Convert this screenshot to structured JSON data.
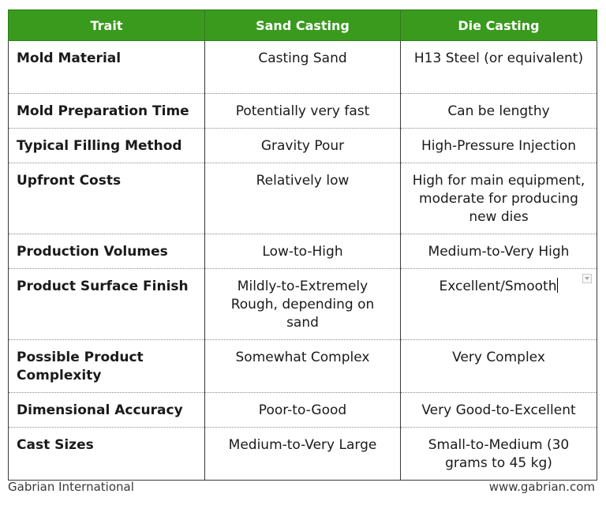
{
  "table": {
    "headers": [
      "Trait",
      "Sand Casting",
      "Die Casting"
    ],
    "rows": [
      {
        "trait": "Mold Material",
        "sand": "Casting Sand",
        "die": "H13 Steel (or equivalent)"
      },
      {
        "trait": "Mold Preparation Time",
        "sand": "Potentially very fast",
        "die": "Can be lengthy"
      },
      {
        "trait": "Typical Filling Method",
        "sand": "Gravity Pour",
        "die": "High-Pressure Injection"
      },
      {
        "trait": "Upfront Costs",
        "sand": "Relatively low",
        "die": "High for main equipment, moderate for producing new dies"
      },
      {
        "trait": "Production Volumes",
        "sand": "Low-to-High",
        "die": "Medium-to-Very High"
      },
      {
        "trait": "Product Surface Finish",
        "sand": "Mildly-to-Extremely Rough, depending on sand",
        "die": "Excellent/Smooth"
      },
      {
        "trait": "Possible Product Complexity",
        "sand": "Somewhat Complex",
        "die": "Very Complex"
      },
      {
        "trait": "Dimensional Accuracy",
        "sand": "Poor-to-Good",
        "die": "Very Good-to-Excellent"
      },
      {
        "trait": "Cast Sizes",
        "sand": "Medium-to-Very Large",
        "die": "Small-to-Medium (30 grams to 45 kg)"
      }
    ]
  },
  "footer": {
    "left": "Gabrian International",
    "right": "www.gabrian.com"
  },
  "colors": {
    "header_bg": "#3a9a1e",
    "header_text": "#ffffff"
  }
}
